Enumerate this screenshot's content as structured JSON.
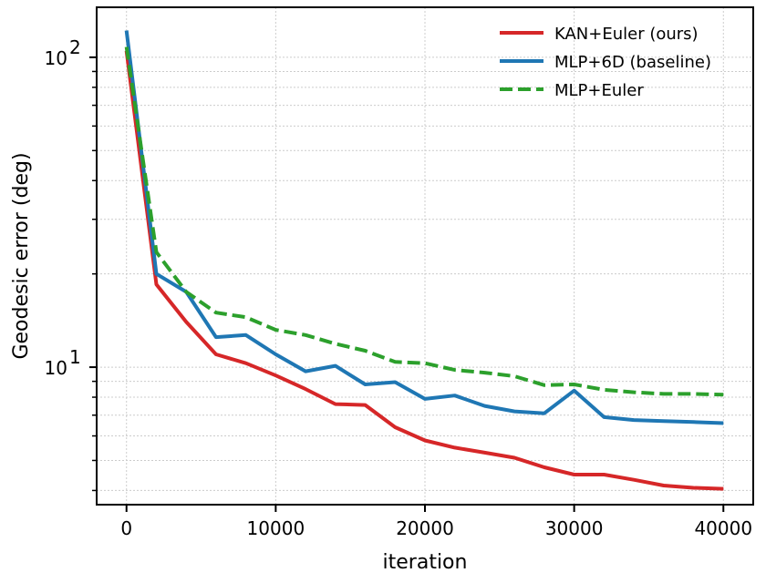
{
  "chart_data": {
    "type": "line",
    "xlabel": "iteration",
    "ylabel": "Geodesic error (deg)",
    "x": [
      0,
      2000,
      4000,
      6000,
      8000,
      10000,
      12000,
      14000,
      16000,
      18000,
      20000,
      22000,
      24000,
      26000,
      28000,
      30000,
      32000,
      34000,
      36000,
      38000,
      40000
    ],
    "xlim": [
      -2000,
      42000
    ],
    "ylim": [
      3.6,
      145
    ],
    "yscale": "log",
    "x_ticks": [
      {
        "value": 0,
        "label": "0"
      },
      {
        "value": 10000,
        "label": "10000"
      },
      {
        "value": 20000,
        "label": "20000"
      },
      {
        "value": 30000,
        "label": "30000"
      },
      {
        "value": 40000,
        "label": "40000"
      }
    ],
    "y_ticks": [
      {
        "value": 10,
        "base": "10",
        "exp": "1"
      },
      {
        "value": 100,
        "base": "10",
        "exp": "2"
      }
    ],
    "grid": true,
    "legend_position": "top-right",
    "series": [
      {
        "name": "KAN+Euler (ours)",
        "color": "#d62728",
        "dash": "solid",
        "values": [
          105,
          18.5,
          14,
          11,
          10.3,
          9.4,
          8.5,
          7.6,
          7.55,
          6.4,
          5.8,
          5.5,
          5.3,
          5.1,
          4.75,
          4.5,
          4.5,
          4.33,
          4.15,
          4.08,
          4.05
        ]
      },
      {
        "name": "MLP+6D (baseline)",
        "color": "#1f77b4",
        "dash": "solid",
        "values": [
          122,
          20,
          17.5,
          12.5,
          12.7,
          11,
          9.7,
          10.1,
          8.8,
          8.95,
          7.9,
          8.1,
          7.5,
          7.2,
          7.1,
          8.4,
          6.9,
          6.75,
          6.7,
          6.65,
          6.6
        ]
      },
      {
        "name": "MLP+Euler",
        "color": "#2ca02c",
        "dash": "dashed",
        "values": [
          108,
          23.5,
          17.5,
          15,
          14.5,
          13.2,
          12.7,
          11.9,
          11.3,
          10.4,
          10.3,
          9.8,
          9.6,
          9.35,
          8.75,
          8.8,
          8.45,
          8.3,
          8.2,
          8.2,
          8.15
        ]
      }
    ]
  }
}
